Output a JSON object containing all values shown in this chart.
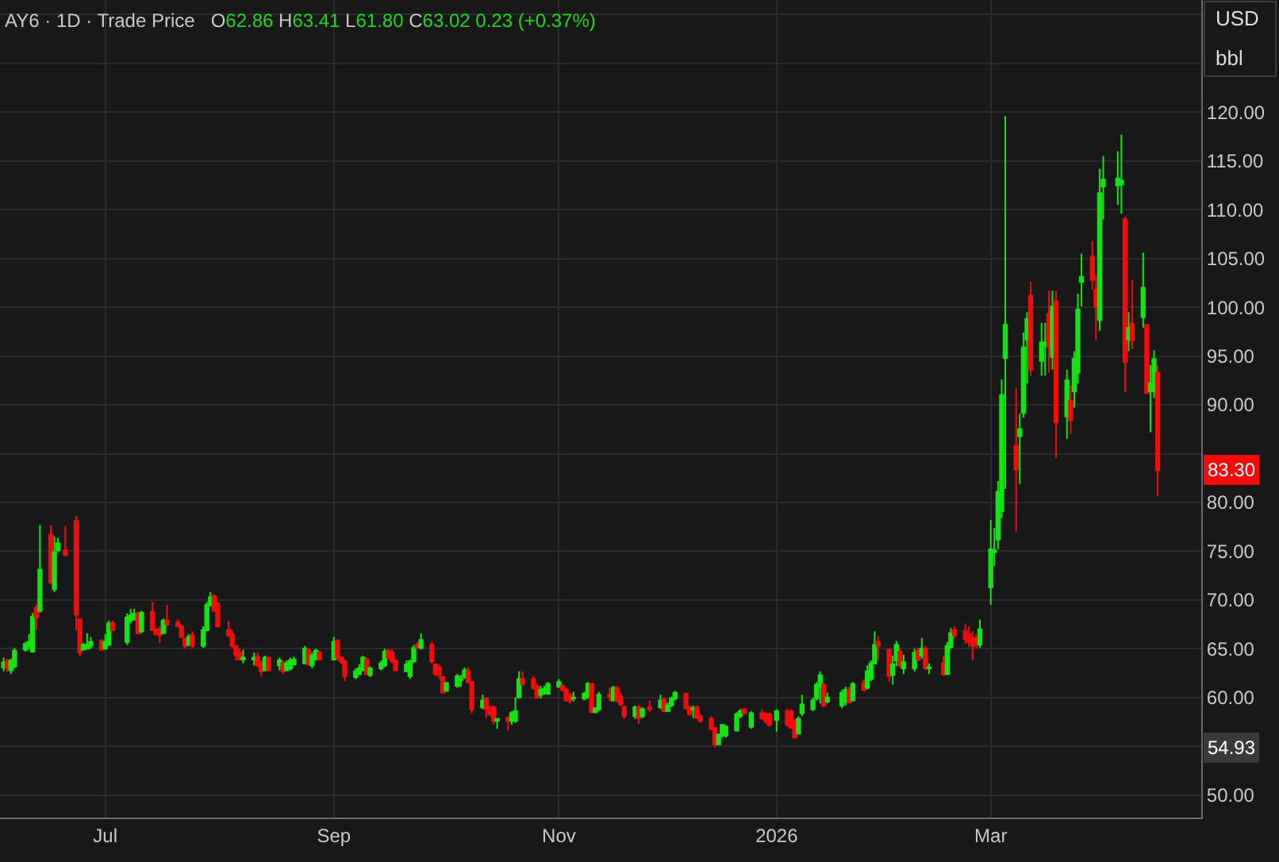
{
  "chart_data": {
    "type": "candlestick",
    "title": "AY6 · 1D · Trade Price",
    "subtitle": "O62.86 H63.41 L61.80 C63.02 0.23 (+0.37%)",
    "x": [
      "2025-06-03",
      "2025-06-04",
      "2025-06-05",
      "2025-06-06",
      "2025-06-09",
      "2025-06-10",
      "2025-06-11",
      "2025-06-12",
      "2025-06-13",
      "2025-06-16",
      "2025-06-17",
      "2025-06-18",
      "2025-06-20",
      "2025-06-23",
      "2025-06-24",
      "2025-06-25",
      "2025-06-26",
      "2025-06-27",
      "2025-06-30",
      "2025-07-01",
      "2025-07-02",
      "2025-07-03",
      "2025-07-07",
      "2025-07-08",
      "2025-07-09",
      "2025-07-10",
      "2025-07-11",
      "2025-07-14",
      "2025-07-15",
      "2025-07-16",
      "2025-07-17",
      "2025-07-18",
      "2025-07-21",
      "2025-07-22",
      "2025-07-23",
      "2025-07-24",
      "2025-07-25",
      "2025-07-28",
      "2025-07-29",
      "2025-07-30",
      "2025-07-31",
      "2025-08-01",
      "2025-08-04",
      "2025-08-05",
      "2025-08-06",
      "2025-08-07",
      "2025-08-08",
      "2025-08-11",
      "2025-08-12",
      "2025-08-13",
      "2025-08-14",
      "2025-08-15",
      "2025-08-18",
      "2025-08-19",
      "2025-08-20",
      "2025-08-21",
      "2025-08-22",
      "2025-08-25",
      "2025-08-26",
      "2025-08-27",
      "2025-08-28",
      "2025-08-29",
      "2025-09-02",
      "2025-09-03",
      "2025-09-04",
      "2025-09-05",
      "2025-09-08",
      "2025-09-09",
      "2025-09-10",
      "2025-09-11",
      "2025-09-12",
      "2025-09-15",
      "2025-09-16",
      "2025-09-17",
      "2025-09-18",
      "2025-09-19",
      "2025-09-22",
      "2025-09-23",
      "2025-09-24",
      "2025-09-25",
      "2025-09-26",
      "2025-09-29",
      "2025-09-30",
      "2025-10-01",
      "2025-10-02",
      "2025-10-03",
      "2025-10-06",
      "2025-10-07",
      "2025-10-08",
      "2025-10-09",
      "2025-10-10",
      "2025-10-13",
      "2025-10-14",
      "2025-10-15",
      "2025-10-16",
      "2025-10-17",
      "2025-10-20",
      "2025-10-21",
      "2025-10-22",
      "2025-10-23",
      "2025-10-24",
      "2025-10-27",
      "2025-10-28",
      "2025-10-29",
      "2025-10-30",
      "2025-10-31",
      "2025-11-03",
      "2025-11-04",
      "2025-11-05",
      "2025-11-06",
      "2025-11-07",
      "2025-11-10",
      "2025-11-11",
      "2025-11-12",
      "2025-11-13",
      "2025-11-14",
      "2025-11-17",
      "2025-11-18",
      "2025-11-19",
      "2025-11-20",
      "2025-11-21",
      "2025-11-24",
      "2025-11-25",
      "2025-11-26",
      "2025-11-28",
      "2025-12-01",
      "2025-12-02",
      "2025-12-03",
      "2025-12-04",
      "2025-12-05",
      "2025-12-08",
      "2025-12-09",
      "2025-12-10",
      "2025-12-11",
      "2025-12-12",
      "2025-12-15",
      "2025-12-16",
      "2025-12-17",
      "2025-12-18",
      "2025-12-19",
      "2025-12-22",
      "2025-12-23",
      "2025-12-24",
      "2025-12-26",
      "2025-12-29",
      "2025-12-30",
      "2025-12-31",
      "2026-01-02",
      "2026-01-05",
      "2026-01-06",
      "2026-01-07",
      "2026-01-08",
      "2026-01-09",
      "2026-01-12",
      "2026-01-13",
      "2026-01-14",
      "2026-01-15",
      "2026-01-16",
      "2026-01-20",
      "2026-01-21",
      "2026-01-22",
      "2026-01-23",
      "2026-01-26",
      "2026-01-27",
      "2026-01-28",
      "2026-01-29",
      "2026-01-30",
      "2026-02-02",
      "2026-02-03",
      "2026-02-04",
      "2026-02-05",
      "2026-02-06",
      "2026-02-09",
      "2026-02-10",
      "2026-02-11",
      "2026-02-12",
      "2026-02-13",
      "2026-02-17",
      "2026-02-18",
      "2026-02-19",
      "2026-02-20",
      "2026-02-23",
      "2026-02-24",
      "2026-02-25",
      "2026-02-26",
      "2026-02-27",
      "2026-03-02",
      "2026-03-03",
      "2026-03-04",
      "2026-03-05",
      "2026-03-06",
      "2026-03-09",
      "2026-03-10",
      "2026-03-11",
      "2026-03-12",
      "2026-03-13",
      "2026-03-16",
      "2026-03-17",
      "2026-03-18",
      "2026-03-19",
      "2026-03-20",
      "2026-03-23",
      "2026-03-24",
      "2026-03-25",
      "2026-03-26",
      "2026-03-27",
      "2026-03-30",
      "2026-03-31",
      "2026-04-01",
      "2026-04-02",
      "2026-04-06",
      "2026-04-07",
      "2026-04-08",
      "2026-04-09",
      "2026-04-10",
      "2026-04-13",
      "2026-04-14",
      "2026-04-15",
      "2026-04-16",
      "2026-04-17"
    ],
    "ohlc": [
      [
        63.1,
        64.1,
        62.7,
        63.6
      ],
      [
        63.7,
        64.0,
        62.6,
        63.0
      ],
      [
        62.8,
        64.0,
        62.4,
        63.8
      ],
      [
        63.2,
        65.1,
        63.0,
        64.8
      ],
      [
        64.9,
        65.7,
        64.7,
        65.5
      ],
      [
        65.3,
        66.5,
        64.9,
        65.7
      ],
      [
        64.7,
        68.7,
        64.6,
        68.3
      ],
      [
        69.2,
        69.6,
        66.9,
        68.2
      ],
      [
        68.9,
        77.7,
        68.7,
        73.1
      ],
      [
        76.7,
        77.7,
        71.6,
        71.8
      ],
      [
        71.1,
        76.5,
        70.8,
        74.9
      ],
      [
        75.1,
        76.4,
        74.9,
        75.8
      ],
      [
        75.1,
        77.6,
        74.5,
        74.6
      ],
      [
        78.1,
        78.6,
        66.9,
        68.5
      ],
      [
        68.0,
        68.0,
        64.2,
        64.6
      ],
      [
        64.9,
        65.6,
        64.9,
        65.4
      ],
      [
        65.0,
        66.6,
        64.9,
        65.4
      ],
      [
        65.3,
        66.2,
        65.0,
        65.7
      ],
      [
        65.8,
        66.0,
        64.8,
        64.9
      ],
      [
        65.0,
        66.5,
        64.9,
        65.7
      ],
      [
        65.4,
        67.9,
        65.3,
        67.6
      ],
      [
        67.6,
        67.9,
        66.8,
        66.9
      ],
      [
        65.7,
        68.6,
        65.4,
        68.2
      ],
      [
        67.9,
        69.1,
        67.6,
        68.4
      ],
      [
        68.0,
        69.1,
        67.9,
        68.6
      ],
      [
        68.6,
        68.8,
        66.5,
        66.6
      ],
      [
        66.8,
        68.9,
        66.6,
        68.7
      ],
      [
        68.8,
        69.8,
        66.8,
        66.9
      ],
      [
        67.0,
        67.1,
        66.4,
        66.5
      ],
      [
        66.9,
        67.3,
        65.6,
        66.4
      ],
      [
        66.6,
        68.1,
        66.5,
        67.9
      ],
      [
        67.9,
        69.5,
        67.3,
        67.5
      ],
      [
        67.7,
        68.0,
        67.2,
        67.3
      ],
      [
        67.3,
        67.4,
        66.1,
        66.2
      ],
      [
        66.0,
        66.1,
        65.0,
        65.3
      ],
      [
        65.4,
        66.5,
        65.3,
        66.2
      ],
      [
        66.4,
        66.8,
        65.1,
        65.3
      ],
      [
        65.3,
        67.3,
        65.1,
        66.9
      ],
      [
        66.9,
        69.8,
        66.8,
        69.5
      ],
      [
        69.5,
        70.8,
        69.3,
        70.3
      ],
      [
        70.4,
        70.6,
        68.8,
        68.9
      ],
      [
        69.6,
        69.8,
        67.2,
        67.3
      ],
      [
        66.9,
        67.9,
        66.2,
        66.4
      ],
      [
        66.5,
        66.9,
        65.1,
        65.3
      ],
      [
        65.3,
        65.4,
        63.8,
        64.4
      ],
      [
        64.6,
        65.0,
        63.8,
        63.9
      ],
      [
        63.9,
        64.9,
        63.5,
        64.1
      ],
      [
        63.9,
        64.6,
        63.3,
        64.1
      ],
      [
        64.2,
        64.6,
        63.1,
        63.3
      ],
      [
        63.5,
        63.8,
        62.2,
        62.7
      ],
      [
        62.8,
        64.3,
        62.7,
        64.1
      ],
      [
        64.1,
        64.2,
        62.7,
        62.8
      ],
      [
        63.3,
        64.1,
        62.8,
        63.8
      ],
      [
        63.5,
        63.8,
        62.4,
        62.7
      ],
      [
        62.8,
        63.8,
        62.7,
        63.5
      ],
      [
        63.0,
        64.1,
        62.8,
        63.8
      ],
      [
        63.4,
        64.2,
        63.3,
        63.9
      ],
      [
        63.5,
        65.3,
        63.4,
        65.0
      ],
      [
        64.9,
        65.0,
        63.3,
        63.4
      ],
      [
        63.3,
        64.6,
        63.0,
        64.3
      ],
      [
        63.9,
        65.0,
        63.8,
        64.8
      ],
      [
        64.6,
        64.8,
        63.8,
        63.9
      ],
      [
        63.9,
        66.2,
        63.8,
        65.7
      ],
      [
        65.8,
        66.0,
        63.8,
        64.1
      ],
      [
        64.1,
        64.2,
        63.4,
        63.7
      ],
      [
        63.7,
        63.9,
        61.7,
        62.2
      ],
      [
        62.1,
        63.0,
        61.9,
        62.7
      ],
      [
        62.4,
        63.4,
        62.3,
        63.0
      ],
      [
        62.8,
        64.3,
        62.7,
        64.1
      ],
      [
        63.9,
        64.1,
        62.3,
        62.4
      ],
      [
        62.3,
        63.2,
        62.1,
        63.0
      ],
      [
        63.0,
        63.8,
        62.8,
        63.5
      ],
      [
        63.3,
        65.0,
        63.1,
        64.7
      ],
      [
        64.8,
        65.0,
        63.9,
        64.1
      ],
      [
        64.6,
        64.9,
        63.5,
        63.7
      ],
      [
        63.8,
        63.9,
        62.7,
        62.8
      ],
      [
        62.7,
        63.8,
        62.6,
        63.4
      ],
      [
        62.2,
        63.9,
        61.9,
        63.7
      ],
      [
        63.7,
        65.4,
        63.5,
        65.1
      ],
      [
        65.4,
        65.7,
        65.0,
        65.1
      ],
      [
        65.1,
        66.6,
        64.9,
        65.9
      ],
      [
        65.4,
        65.7,
        63.5,
        63.7
      ],
      [
        63.4,
        63.5,
        62.2,
        62.4
      ],
      [
        63.1,
        63.4,
        61.9,
        62.3
      ],
      [
        62.1,
        62.2,
        60.4,
        60.5
      ],
      [
        60.7,
        61.6,
        60.6,
        61.5
      ],
      [
        61.2,
        62.4,
        61.0,
        62.2
      ],
      [
        61.8,
        62.3,
        61.1,
        61.9
      ],
      [
        62.1,
        63.1,
        61.9,
        62.8
      ],
      [
        62.7,
        63.1,
        61.4,
        61.6
      ],
      [
        61.6,
        61.7,
        58.4,
        58.8
      ],
      [
        59.0,
        60.3,
        58.8,
        59.7
      ],
      [
        59.9,
        60.0,
        57.9,
        58.8
      ],
      [
        58.9,
        59.2,
        58.1,
        58.3
      ],
      [
        59.0,
        59.2,
        57.3,
        57.6
      ],
      [
        57.6,
        57.9,
        56.8,
        57.8
      ],
      [
        57.9,
        58.1,
        56.6,
        57.6
      ],
      [
        57.6,
        58.6,
        57.2,
        58.4
      ],
      [
        57.6,
        60.0,
        57.4,
        58.6
      ],
      [
        60.0,
        62.7,
        59.9,
        61.9
      ],
      [
        61.9,
        62.7,
        61.2,
        61.4
      ],
      [
        61.9,
        62.2,
        60.8,
        61.0
      ],
      [
        61.1,
        61.4,
        59.9,
        60.0
      ],
      [
        60.3,
        61.2,
        59.9,
        60.8
      ],
      [
        60.5,
        61.2,
        60.3,
        60.9
      ],
      [
        60.4,
        61.6,
        60.3,
        61.4
      ],
      [
        61.1,
        61.9,
        61.0,
        61.6
      ],
      [
        61.2,
        61.4,
        60.6,
        60.8
      ],
      [
        60.8,
        61.0,
        59.6,
        59.7
      ],
      [
        60.3,
        60.5,
        59.4,
        59.7
      ],
      [
        59.9,
        60.6,
        59.6,
        60.0
      ],
      [
        59.9,
        60.6,
        59.7,
        60.4
      ],
      [
        60.0,
        61.6,
        59.9,
        61.4
      ],
      [
        61.4,
        61.5,
        58.4,
        58.5
      ],
      [
        58.5,
        59.0,
        58.4,
        58.9
      ],
      [
        58.8,
        60.6,
        58.6,
        60.3
      ],
      [
        60.3,
        61.0,
        59.6,
        60.1
      ],
      [
        59.7,
        61.2,
        59.6,
        61.0
      ],
      [
        61.0,
        61.2,
        59.5,
        59.7
      ],
      [
        60.1,
        60.5,
        59.1,
        59.3
      ],
      [
        59.0,
        59.2,
        57.8,
        58.1
      ],
      [
        58.1,
        59.2,
        57.8,
        59.0
      ],
      [
        59.0,
        59.2,
        57.3,
        57.9
      ],
      [
        58.1,
        59.0,
        57.9,
        58.8
      ],
      [
        59.0,
        59.7,
        58.5,
        58.8
      ],
      [
        59.0,
        60.3,
        58.8,
        59.7
      ],
      [
        59.8,
        60.0,
        58.5,
        58.6
      ],
      [
        58.6,
        59.5,
        58.5,
        59.2
      ],
      [
        59.2,
        60.1,
        59.0,
        59.9
      ],
      [
        59.9,
        60.7,
        59.7,
        60.5
      ],
      [
        60.4,
        60.5,
        58.8,
        58.9
      ],
      [
        59.0,
        59.2,
        58.1,
        58.3
      ],
      [
        58.8,
        59.2,
        57.9,
        58.9
      ],
      [
        59.0,
        59.2,
        57.8,
        57.9
      ],
      [
        58.1,
        58.3,
        57.4,
        57.6
      ],
      [
        57.8,
        58.1,
        56.6,
        56.8
      ],
      [
        56.9,
        57.0,
        54.9,
        55.2
      ],
      [
        55.2,
        56.3,
        55.1,
        56.2
      ],
      [
        56.1,
        57.3,
        55.9,
        57.2
      ],
      [
        56.1,
        57.2,
        55.9,
        57.0
      ],
      [
        56.6,
        58.5,
        56.5,
        58.3
      ],
      [
        58.1,
        58.8,
        57.9,
        58.6
      ],
      [
        58.8,
        58.9,
        58.3,
        58.4
      ],
      [
        57.0,
        58.6,
        56.8,
        58.4
      ],
      [
        58.4,
        58.8,
        57.7,
        57.9
      ],
      [
        58.3,
        58.5,
        57.3,
        57.6
      ],
      [
        58.3,
        58.5,
        57.0,
        57.2
      ],
      [
        57.7,
        58.8,
        56.5,
        58.6
      ],
      [
        58.6,
        58.9,
        57.0,
        57.2
      ],
      [
        58.6,
        58.8,
        56.8,
        56.9
      ],
      [
        57.6,
        57.8,
        55.8,
        55.9
      ],
      [
        56.3,
        58.1,
        56.2,
        57.8
      ],
      [
        58.4,
        60.3,
        58.1,
        59.3
      ],
      [
        58.8,
        60.0,
        58.6,
        59.7
      ],
      [
        59.9,
        61.6,
        59.7,
        61.3
      ],
      [
        61.1,
        62.7,
        59.4,
        62.3
      ],
      [
        61.3,
        61.5,
        59.0,
        59.2
      ],
      [
        59.6,
        60.5,
        59.4,
        60.0
      ],
      [
        59.2,
        60.8,
        58.9,
        60.5
      ],
      [
        59.5,
        61.1,
        59.2,
        60.8
      ],
      [
        60.8,
        61.1,
        59.4,
        59.5
      ],
      [
        59.7,
        61.6,
        59.6,
        61.4
      ],
      [
        61.5,
        61.9,
        60.6,
        60.8
      ],
      [
        61.0,
        63.3,
        60.8,
        62.7
      ],
      [
        61.9,
        63.8,
        61.7,
        63.5
      ],
      [
        63.5,
        66.8,
        63.4,
        65.4
      ],
      [
        65.7,
        66.3,
        63.8,
        65.3
      ],
      [
        64.9,
        65.0,
        61.6,
        62.2
      ],
      [
        62.3,
        64.3,
        61.3,
        63.4
      ],
      [
        63.8,
        65.8,
        63.2,
        65.4
      ],
      [
        64.7,
        65.1,
        63.0,
        63.3
      ],
      [
        63.0,
        64.4,
        62.4,
        63.6
      ],
      [
        63.0,
        65.0,
        62.7,
        64.6
      ],
      [
        64.8,
        65.1,
        63.7,
        63.9
      ],
      [
        64.3,
        66.1,
        64.0,
        65.0
      ],
      [
        65.0,
        65.3,
        62.8,
        63.0
      ],
      [
        63.0,
        63.5,
        62.4,
        63.1
      ],
      [
        63.5,
        64.3,
        62.2,
        62.4
      ],
      [
        62.4,
        65.7,
        62.3,
        65.3
      ],
      [
        65.2,
        67.1,
        65.0,
        66.6
      ],
      [
        66.9,
        67.3,
        66.0,
        66.4
      ],
      [
        66.8,
        67.6,
        65.5,
        66.0
      ],
      [
        66.5,
        67.3,
        65.2,
        65.7
      ],
      [
        66.1,
        66.8,
        63.8,
        65.3
      ],
      [
        66.0,
        66.5,
        65.0,
        65.4
      ],
      [
        65.4,
        68.0,
        65.1,
        67.0
      ],
      [
        71.3,
        78.2,
        69.5,
        75.2
      ],
      [
        74.9,
        77.4,
        73.5,
        75.1
      ],
      [
        76.2,
        82.2,
        75.2,
        81.1
      ],
      [
        79.1,
        92.6,
        78.4,
        91.0
      ],
      [
        94.8,
        119.6,
        81.4,
        98.2
      ],
      [
        85.8,
        91.7,
        77.0,
        83.4
      ],
      [
        86.8,
        89.1,
        81.9,
        87.5
      ],
      [
        89.2,
        97.4,
        88.7,
        95.9
      ],
      [
        96.7,
        99.5,
        92.2,
        98.8
      ],
      [
        101.2,
        102.6,
        93.0,
        93.6
      ],
      [
        94.5,
        98.4,
        93.0,
        96.4
      ],
      [
        96.0,
        98.4,
        93.0,
        96.4
      ],
      [
        99.3,
        101.7,
        93.3,
        96.0
      ],
      [
        94.9,
        101.7,
        93.6,
        100.1
      ],
      [
        100.6,
        101.7,
        84.6,
        88.2
      ],
      [
        88.8,
        93.6,
        86.5,
        92.5
      ],
      [
        90.4,
        92.0,
        87.0,
        88.4
      ],
      [
        91.4,
        95.5,
        89.7,
        94.7
      ],
      [
        93.3,
        101.4,
        92.2,
        99.8
      ],
      [
        102.6,
        105.5,
        100.1,
        103.1
      ],
      [
        105.2,
        106.8,
        101.8,
        102.8
      ],
      [
        101.8,
        103.3,
        96.6,
        100.1
      ],
      [
        98.7,
        114.2,
        97.6,
        111.7
      ],
      [
        112.4,
        115.5,
        109.0,
        113.1
      ],
      [
        112.5,
        116.0,
        110.5,
        113.2
      ],
      [
        112.6,
        117.7,
        109.6,
        113.0
      ],
      [
        109.0,
        109.3,
        91.3,
        94.4
      ],
      [
        96.7,
        99.5,
        95.5,
        97.9
      ],
      [
        98.3,
        102.8,
        95.7,
        96.6
      ],
      [
        99.0,
        105.6,
        97.9,
        102.0
      ],
      [
        98.2,
        98.3,
        91.1,
        91.2
      ],
      [
        91.4,
        94.1,
        87.2,
        92.2
      ],
      [
        91.4,
        95.6,
        90.7,
        94.7
      ],
      [
        93.3,
        94.1,
        80.6,
        83.3
      ]
    ],
    "colors": [
      "#14e314",
      "#f20d0d",
      "#14e314",
      "#14e314",
      "#14e314",
      "#14e314",
      "#14e314",
      "#f20d0d",
      "#14e314",
      "#f20d0d",
      "#14e314",
      "#14e314",
      "#f20d0d",
      "#f20d0d",
      "#f20d0d",
      "#14e314",
      "#14e314",
      "#14e314",
      "#f20d0d",
      "#14e314",
      "#14e314",
      "#f20d0d",
      "#14e314",
      "#14e314",
      "#14e314",
      "#f20d0d",
      "#14e314",
      "#f20d0d",
      "#f20d0d",
      "#f20d0d",
      "#14e314",
      "#f20d0d",
      "#f20d0d",
      "#f20d0d",
      "#f20d0d",
      "#14e314",
      "#f20d0d",
      "#14e314",
      "#14e314",
      "#14e314",
      "#f20d0d",
      "#f20d0d",
      "#f20d0d",
      "#f20d0d",
      "#f20d0d",
      "#f20d0d",
      "#14e314",
      "#14e314",
      "#f20d0d",
      "#f20d0d",
      "#14e314",
      "#f20d0d",
      "#14e314",
      "#f20d0d",
      "#14e314",
      "#14e314",
      "#14e314",
      "#14e314",
      "#f20d0d",
      "#14e314",
      "#14e314",
      "#f20d0d",
      "#14e314",
      "#f20d0d",
      "#f20d0d",
      "#f20d0d",
      "#14e314",
      "#14e314",
      "#14e314",
      "#f20d0d",
      "#14e314",
      "#14e314",
      "#14e314",
      "#f20d0d",
      "#f20d0d",
      "#f20d0d",
      "#14e314",
      "#14e314",
      "#14e314",
      "#f20d0d",
      "#14e314",
      "#f20d0d",
      "#f20d0d",
      "#f20d0d",
      "#f20d0d",
      "#14e314",
      "#14e314",
      "#14e314",
      "#14e314",
      "#f20d0d",
      "#f20d0d",
      "#14e314",
      "#f20d0d",
      "#f20d0d",
      "#f20d0d",
      "#14e314",
      "#f20d0d",
      "#14e314",
      "#14e314",
      "#14e314",
      "#f20d0d",
      "#f20d0d",
      "#f20d0d",
      "#14e314",
      "#14e314",
      "#14e314",
      "#14e314",
      "#f20d0d",
      "#f20d0d",
      "#f20d0d",
      "#14e314",
      "#14e314",
      "#14e314",
      "#f20d0d",
      "#14e314",
      "#14e314",
      "#f20d0d",
      "#14e314",
      "#f20d0d",
      "#f20d0d",
      "#f20d0d",
      "#14e314",
      "#f20d0d",
      "#14e314",
      "#f20d0d",
      "#14e314",
      "#f20d0d",
      "#14e314",
      "#14e314",
      "#14e314",
      "#f20d0d",
      "#f20d0d",
      "#14e314",
      "#f20d0d",
      "#f20d0d",
      "#f20d0d",
      "#f20d0d",
      "#14e314",
      "#14e314",
      "#14e314",
      "#14e314",
      "#14e314",
      "#f20d0d",
      "#14e314",
      "#f20d0d",
      "#f20d0d",
      "#f20d0d",
      "#14e314",
      "#f20d0d",
      "#f20d0d",
      "#f20d0d",
      "#14e314",
      "#14e314",
      "#14e314",
      "#14e314",
      "#14e314",
      "#f20d0d",
      "#14e314",
      "#14e314",
      "#14e314",
      "#f20d0d",
      "#14e314",
      "#f20d0d",
      "#14e314",
      "#14e314",
      "#14e314",
      "#f20d0d",
      "#f20d0d",
      "#14e314",
      "#14e314",
      "#f20d0d",
      "#14e314",
      "#14e314",
      "#f20d0d",
      "#14e314",
      "#f20d0d",
      "#14e314",
      "#f20d0d",
      "#14e314",
      "#14e314",
      "#f20d0d",
      "#f20d0d",
      "#f20d0d",
      "#f20d0d",
      "#f20d0d",
      "#14e314",
      "#14e314",
      "#14e314",
      "#14e314",
      "#14e314",
      "#14e314",
      "#f20d0d",
      "#14e314",
      "#14e314",
      "#14e314",
      "#f20d0d",
      "#14e314",
      "#14e314",
      "#f20d0d",
      "#14e314",
      "#f20d0d",
      "#14e314",
      "#f20d0d",
      "#14e314",
      "#14e314",
      "#14e314",
      "#f20d0d",
      "#f20d0d",
      "#14e314",
      "#14e314",
      "#14e314",
      "#14e314",
      "#f20d0d",
      "#14e314",
      "#f20d0d",
      "#14e314",
      "#f20d0d",
      "#14e314",
      "#14e314",
      "#f20d0d"
    ],
    "xlim": [
      "2025-06-02",
      "2026-04-29"
    ],
    "xticks": [
      {
        "value": "2025-07-01",
        "label": "Jul"
      },
      {
        "value": "2025-09-02",
        "label": "Sep"
      },
      {
        "value": "2025-11-03",
        "label": "Nov"
      },
      {
        "value": "2026-01-02",
        "label": "2026"
      },
      {
        "value": "2026-03-02",
        "label": "Mar"
      }
    ],
    "ylim": [
      47.7,
      131.5
    ],
    "yticks": [
      {
        "value": 50,
        "label": "50.00"
      },
      {
        "value": 55,
        "label": null
      },
      {
        "value": 60,
        "label": "60.00"
      },
      {
        "value": 65,
        "label": "65.00"
      },
      {
        "value": 70,
        "label": "70.00"
      },
      {
        "value": 75,
        "label": "75.00"
      },
      {
        "value": 80,
        "label": "80.00"
      },
      {
        "value": 85,
        "label": null
      },
      {
        "value": 90,
        "label": "90.00"
      },
      {
        "value": 95,
        "label": "95.00"
      },
      {
        "value": 100,
        "label": "100.00"
      },
      {
        "value": 105,
        "label": "105.00"
      },
      {
        "value": 110,
        "label": "110.00"
      },
      {
        "value": 115,
        "label": "115.00"
      },
      {
        "value": 120,
        "label": "120.00"
      },
      {
        "value": 125,
        "label": null
      },
      {
        "value": 130,
        "label": null
      }
    ],
    "grid": true,
    "annotations": [
      "USD",
      "bbl",
      "83.30",
      "54.93"
    ]
  }
}
